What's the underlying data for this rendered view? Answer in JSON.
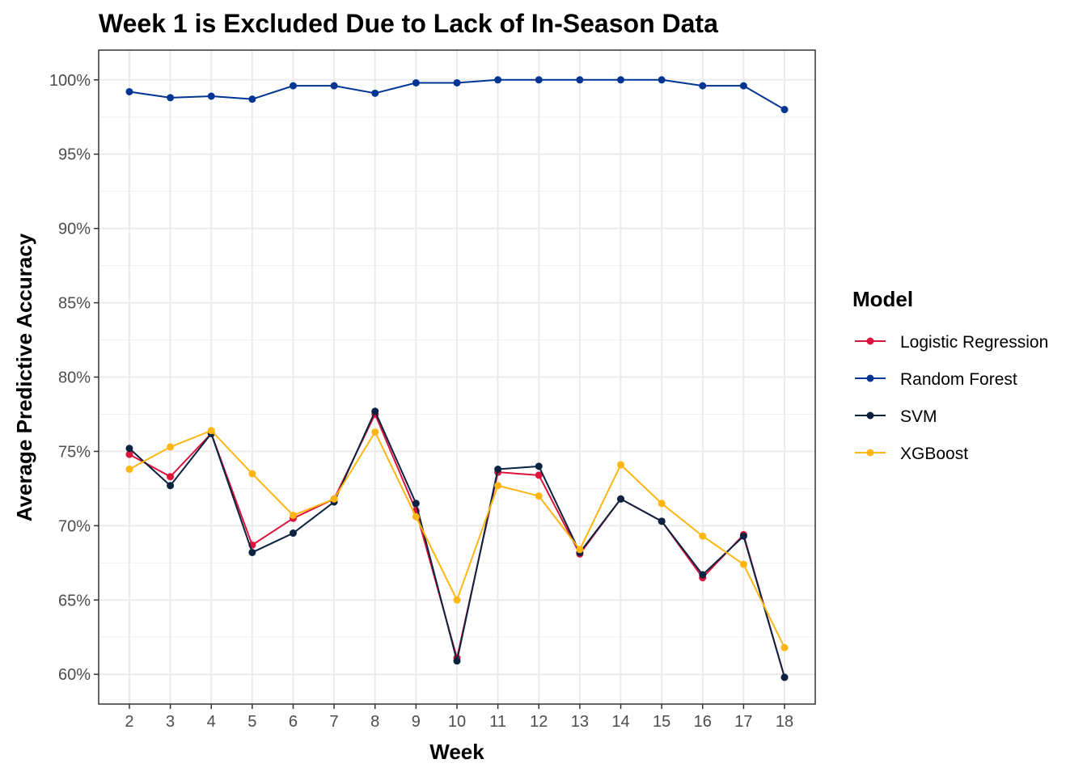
{
  "chart_data": {
    "type": "line",
    "title": "Week 1 is Excluded Due to Lack of In-Season Data",
    "xlabel": "Week",
    "ylabel": "Average Predictive Accuracy",
    "x": [
      2,
      3,
      4,
      5,
      6,
      7,
      8,
      9,
      10,
      11,
      12,
      13,
      14,
      15,
      16,
      17,
      18
    ],
    "x_ticks": [
      "2",
      "3",
      "4",
      "5",
      "6",
      "7",
      "8",
      "9",
      "10",
      "11",
      "12",
      "13",
      "14",
      "15",
      "16",
      "17",
      "18"
    ],
    "xlim": [
      1.25,
      18.75
    ],
    "ylim": [
      58.0,
      102.0
    ],
    "y_ticks": [
      60,
      65,
      70,
      75,
      80,
      85,
      90,
      95,
      100
    ],
    "y_tick_labels": [
      "60%",
      "65%",
      "70%",
      "75%",
      "80%",
      "85%",
      "90%",
      "95%",
      "100%"
    ],
    "grid": true,
    "legend": {
      "title": "Model",
      "position": "right"
    },
    "series": [
      {
        "name": "Logistic Regression",
        "color": "#dc143c",
        "values": [
          74.8,
          73.3,
          76.2,
          68.7,
          70.5,
          71.8,
          77.5,
          71.0,
          61.1,
          73.6,
          73.4,
          68.1,
          71.8,
          70.3,
          66.5,
          69.4,
          59.8
        ]
      },
      {
        "name": "Random Forest",
        "color": "#003594",
        "values": [
          99.2,
          98.8,
          98.9,
          98.7,
          99.6,
          99.6,
          99.1,
          99.8,
          99.8,
          100.0,
          100.0,
          100.0,
          100.0,
          100.0,
          99.6,
          99.6,
          98.0
        ]
      },
      {
        "name": "SVM",
        "color": "#0b2240",
        "values": [
          75.2,
          72.7,
          76.2,
          68.2,
          69.5,
          71.6,
          77.7,
          71.5,
          60.9,
          73.8,
          74.0,
          68.2,
          71.8,
          70.3,
          66.7,
          69.3,
          59.8
        ]
      },
      {
        "name": "XGBoost",
        "color": "#ffb612",
        "values": [
          73.8,
          75.3,
          76.4,
          73.5,
          70.7,
          71.8,
          76.3,
          70.6,
          65.0,
          72.7,
          72.0,
          68.4,
          74.1,
          71.5,
          69.3,
          67.4,
          61.8
        ]
      }
    ]
  }
}
